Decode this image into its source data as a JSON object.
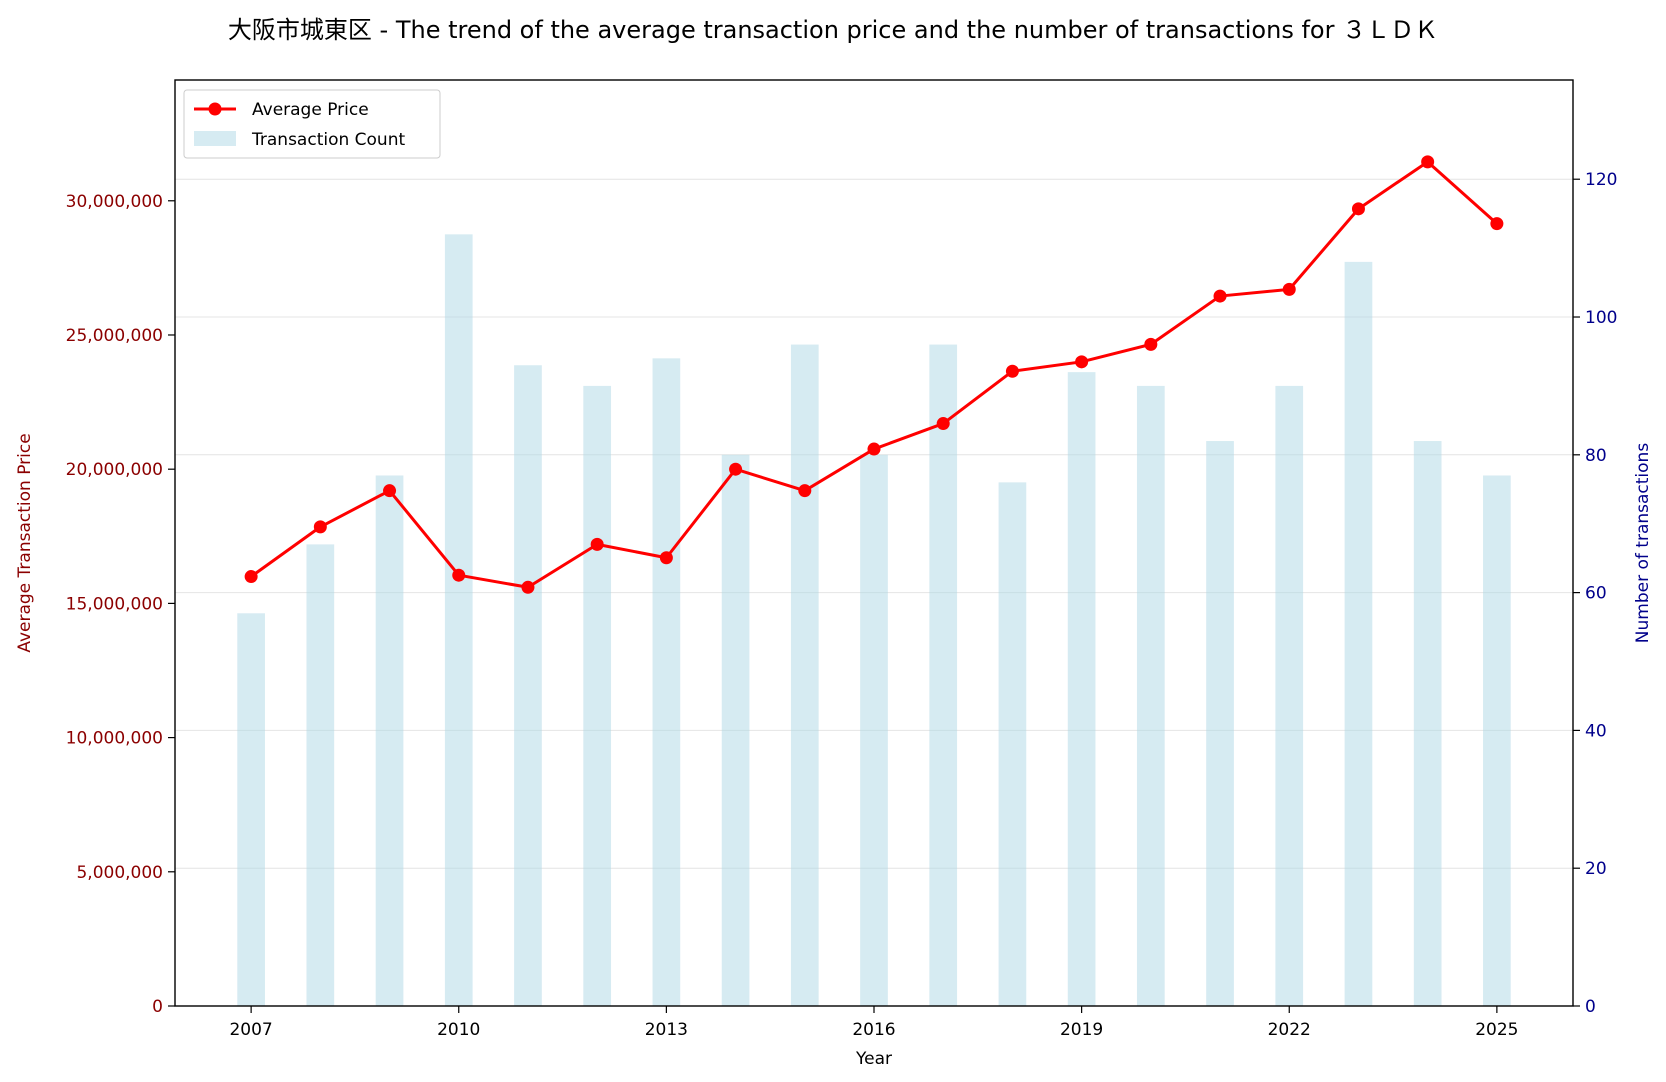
{
  "chart_data": {
    "type": "bar+line",
    "title": "大阪市城東区 - The trend of the average transaction price and the number of transactions for ３ＬＤＫ",
    "xlabel": "Year",
    "ylabel_left": "Average Transaction Price",
    "ylabel_right": "Number of transactions",
    "x": [
      2007,
      2008,
      2009,
      2010,
      2011,
      2012,
      2013,
      2014,
      2015,
      2016,
      2017,
      2018,
      2019,
      2020,
      2021,
      2022,
      2023,
      2024,
      2025
    ],
    "x_ticks": [
      "2007",
      "2010",
      "2013",
      "2016",
      "2019",
      "2022",
      "2025"
    ],
    "xlim": [
      2005.9,
      2026.1
    ],
    "ylim_left": [
      0,
      34500000
    ],
    "yticks_left": [
      "0",
      "5,000,000",
      "10,000,000",
      "15,000,000",
      "20,000,000",
      "25,000,000",
      "30,000,000"
    ],
    "ylim_right": [
      0,
      134.4
    ],
    "yticks_right": [
      "0",
      "20",
      "40",
      "60",
      "80",
      "100",
      "120"
    ],
    "grid": true,
    "legend_position": "top-left",
    "series": [
      {
        "name": "Average Price",
        "kind": "line",
        "axis": "left",
        "color": "#ff0000",
        "values": [
          16000000,
          17850000,
          19200000,
          16050000,
          15600000,
          17200000,
          16700000,
          20000000,
          19200000,
          20750000,
          21700000,
          23650000,
          24000000,
          24650000,
          26450000,
          26700000,
          29700000,
          31450000,
          29150000
        ]
      },
      {
        "name": "Transaction Count",
        "kind": "bar",
        "axis": "right",
        "color": "#add8e6",
        "values": [
          57,
          67,
          77,
          112,
          93,
          90,
          94,
          80,
          96,
          80,
          96,
          76,
          92,
          90,
          82,
          90,
          108,
          82,
          77
        ]
      }
    ],
    "left_axis_color": "#8b0000",
    "right_axis_color": "#00008b"
  }
}
